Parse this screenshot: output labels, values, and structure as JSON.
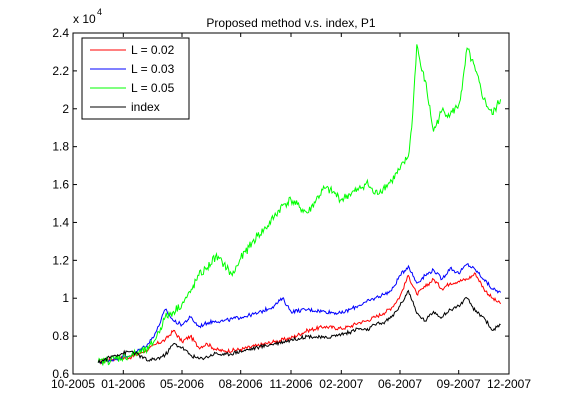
{
  "chart_data": {
    "type": "line",
    "title": "Proposed method v.s. index, P1",
    "xlabel": "",
    "ylabel": "",
    "y_multiplier_base": "x 10",
    "y_multiplier_exp": "4",
    "x_ticks": [
      "10-2005",
      "01-2006",
      "05-2006",
      "08-2006",
      "11-2006",
      "02-2007",
      "06-2007",
      "09-2007",
      "12-2007"
    ],
    "x_tick_positions": [
      0,
      3,
      6.5,
      10,
      13,
      16,
      19.5,
      23,
      26
    ],
    "xlim": [
      0,
      26
    ],
    "y_ticks": [
      "0.6",
      "0.8",
      "1",
      "1.2",
      "1.4",
      "1.6",
      "1.8",
      "2",
      "2.2",
      "2.4"
    ],
    "ylim": [
      0.6,
      2.4
    ],
    "legend_position": "top-left",
    "grid": false,
    "series": [
      {
        "name": "L = 0.02",
        "color": "#ff0000",
        "x": [
          1.5,
          2.5,
          3.5,
          4.5,
          5.0,
          5.5,
          6.0,
          6.5,
          7.0,
          7.5,
          8.0,
          8.5,
          9.0,
          10.0,
          11.0,
          12.0,
          13.0,
          14.0,
          15.0,
          16.0,
          16.5,
          17.0,
          17.5,
          18.0,
          18.5,
          19.0,
          19.5,
          20.0,
          20.5,
          21.0,
          21.5,
          22.0,
          22.5,
          23.0,
          23.5,
          24.0,
          24.5,
          25.0,
          25.5
        ],
        "y": [
          0.66,
          0.68,
          0.69,
          0.73,
          0.76,
          0.78,
          0.83,
          0.77,
          0.8,
          0.74,
          0.76,
          0.73,
          0.72,
          0.73,
          0.75,
          0.77,
          0.79,
          0.83,
          0.85,
          0.84,
          0.85,
          0.87,
          0.88,
          0.9,
          0.92,
          0.95,
          1.01,
          1.12,
          1.02,
          1.06,
          1.1,
          1.05,
          1.08,
          1.09,
          1.1,
          1.13,
          1.05,
          1.0,
          0.97
        ]
      },
      {
        "name": "L = 0.03",
        "color": "#0000ff",
        "x": [
          1.5,
          2.5,
          3.5,
          4.5,
          5.0,
          5.5,
          6.0,
          6.5,
          7.0,
          7.5,
          8.0,
          8.5,
          9.0,
          10.0,
          11.0,
          12.0,
          12.5,
          13.0,
          14.0,
          15.0,
          16.0,
          16.5,
          17.0,
          17.5,
          18.0,
          18.5,
          19.0,
          19.5,
          20.0,
          20.5,
          21.0,
          21.5,
          22.0,
          22.5,
          23.0,
          23.5,
          24.0,
          24.5,
          25.0,
          25.5
        ],
        "y": [
          0.66,
          0.68,
          0.7,
          0.76,
          0.83,
          0.94,
          0.88,
          0.86,
          0.9,
          0.85,
          0.87,
          0.88,
          0.88,
          0.9,
          0.92,
          0.96,
          1.0,
          0.93,
          0.94,
          0.93,
          0.92,
          0.94,
          0.96,
          0.98,
          1.0,
          1.02,
          1.04,
          1.12,
          1.17,
          1.08,
          1.12,
          1.15,
          1.1,
          1.16,
          1.13,
          1.18,
          1.15,
          1.1,
          1.05,
          1.03
        ]
      },
      {
        "name": "L = 0.05",
        "color": "#00ff00",
        "x": [
          1.5,
          2.5,
          3.5,
          4.5,
          5.0,
          5.5,
          6.0,
          6.5,
          7.0,
          7.5,
          8.0,
          8.5,
          9.0,
          9.5,
          10.0,
          10.5,
          11.0,
          11.5,
          12.0,
          12.5,
          13.0,
          13.5,
          14.0,
          14.5,
          15.0,
          15.5,
          16.0,
          16.5,
          17.0,
          17.5,
          18.0,
          18.5,
          19.0,
          19.5,
          20.0,
          20.2,
          20.5,
          20.8,
          21.0,
          21.5,
          22.0,
          22.5,
          23.0,
          23.2,
          23.5,
          24.0,
          24.5,
          25.0,
          25.5
        ],
        "y": [
          0.66,
          0.68,
          0.7,
          0.73,
          0.8,
          0.9,
          0.93,
          0.97,
          1.03,
          1.12,
          1.16,
          1.22,
          1.18,
          1.12,
          1.21,
          1.27,
          1.33,
          1.37,
          1.43,
          1.49,
          1.52,
          1.48,
          1.45,
          1.52,
          1.58,
          1.56,
          1.52,
          1.55,
          1.57,
          1.61,
          1.55,
          1.58,
          1.62,
          1.68,
          1.75,
          1.9,
          2.34,
          2.2,
          2.15,
          1.88,
          1.99,
          1.97,
          2.02,
          2.1,
          2.32,
          2.2,
          2.05,
          1.97,
          2.05
        ]
      },
      {
        "name": "index",
        "color": "#000000",
        "x": [
          1.5,
          2.5,
          3.5,
          4.5,
          5.0,
          5.5,
          6.0,
          6.5,
          7.0,
          7.5,
          8.0,
          8.5,
          9.0,
          10.0,
          11.0,
          12.0,
          13.0,
          14.0,
          15.0,
          16.0,
          16.5,
          17.0,
          17.5,
          18.0,
          18.5,
          19.0,
          19.5,
          20.0,
          20.5,
          21.0,
          21.5,
          22.0,
          22.5,
          23.0,
          23.5,
          24.0,
          24.5,
          25.0,
          25.5
        ],
        "y": [
          0.66,
          0.7,
          0.72,
          0.67,
          0.68,
          0.7,
          0.76,
          0.74,
          0.7,
          0.68,
          0.69,
          0.71,
          0.7,
          0.72,
          0.74,
          0.76,
          0.78,
          0.8,
          0.79,
          0.81,
          0.82,
          0.84,
          0.83,
          0.86,
          0.87,
          0.9,
          0.96,
          1.04,
          0.92,
          0.88,
          0.93,
          0.9,
          0.94,
          0.96,
          1.0,
          0.93,
          0.9,
          0.83,
          0.86
        ]
      }
    ]
  }
}
